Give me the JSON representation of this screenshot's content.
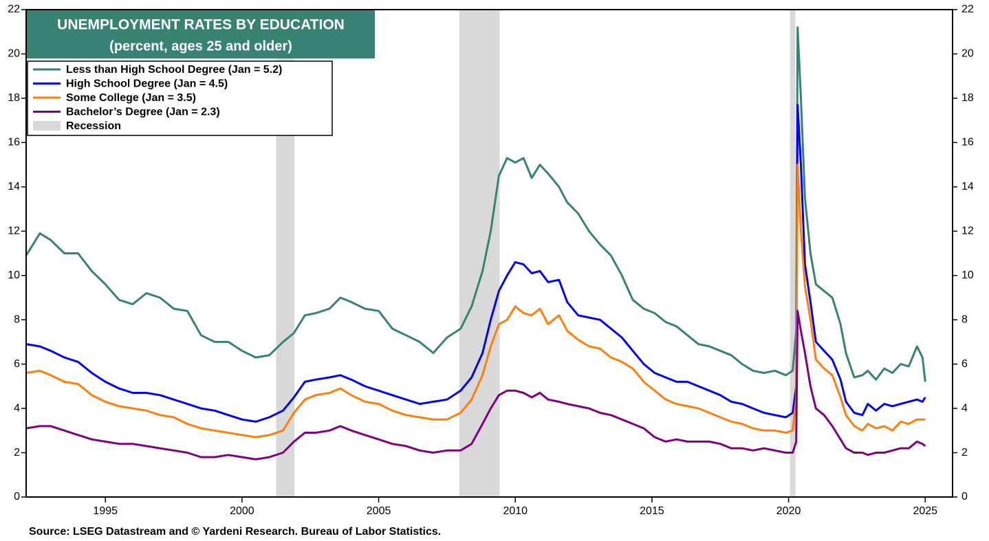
{
  "chart_data": {
    "type": "line",
    "title": "UNEMPLOYMENT RATES BY EDUCATION",
    "subtitle": "(percent, ages 25 and older)",
    "source": "Source: LSEG Datastream and © Yardeni Research. Bureau of Labor Statistics.",
    "xlim": [
      1992.1,
      2026.0
    ],
    "xticks": [
      1995,
      2000,
      2005,
      2010,
      2015,
      2020,
      2025
    ],
    "ylim": [
      0,
      22
    ],
    "yticks": [
      0,
      2,
      4,
      6,
      8,
      10,
      12,
      14,
      16,
      18,
      20,
      22
    ],
    "y2lim": [
      0,
      22
    ],
    "y2ticks": [
      0,
      2,
      4,
      6,
      8,
      10,
      12,
      14,
      16,
      18,
      20,
      22
    ],
    "legend": "upper left",
    "recession_label": "Recession",
    "recession_color": "#d9d9d9",
    "recessions": [
      [
        2001.25,
        2001.92
      ],
      [
        2007.95,
        2009.43
      ],
      [
        2020.05,
        2020.25
      ]
    ],
    "x": [
      1992.1,
      1992.6,
      1993.0,
      1993.5,
      1994.0,
      1994.5,
      1995.0,
      1995.5,
      1996.0,
      1996.5,
      1997.0,
      1997.5,
      1998.0,
      1998.5,
      1999.0,
      1999.5,
      2000.0,
      2000.5,
      2001.0,
      2001.5,
      2001.9,
      2002.3,
      2002.7,
      2003.2,
      2003.6,
      2004.0,
      2004.5,
      2005.0,
      2005.5,
      2006.0,
      2006.5,
      2007.0,
      2007.5,
      2008.0,
      2008.4,
      2008.8,
      2009.1,
      2009.4,
      2009.7,
      2010.0,
      2010.3,
      2010.6,
      2010.9,
      2011.2,
      2011.6,
      2011.9,
      2012.3,
      2012.7,
      2013.1,
      2013.5,
      2013.9,
      2014.3,
      2014.7,
      2015.1,
      2015.5,
      2015.9,
      2016.3,
      2016.7,
      2017.1,
      2017.5,
      2017.9,
      2018.3,
      2018.7,
      2019.1,
      2019.5,
      2019.9,
      2020.15,
      2020.28,
      2020.33,
      2020.45,
      2020.6,
      2020.8,
      2021.0,
      2021.3,
      2021.6,
      2021.9,
      2022.1,
      2022.4,
      2022.7,
      2022.9,
      2023.2,
      2023.5,
      2023.8,
      2024.1,
      2024.4,
      2024.7,
      2024.9,
      2025.0
    ],
    "series": [
      {
        "name": "Less than High School Degree (Jan = 5.2)",
        "color": "#378272",
        "values": [
          10.9,
          11.9,
          11.6,
          11.0,
          11.0,
          10.2,
          9.6,
          8.9,
          8.7,
          9.2,
          9.0,
          8.5,
          8.4,
          7.3,
          7.0,
          7.0,
          6.6,
          6.3,
          6.4,
          7.0,
          7.4,
          8.2,
          8.3,
          8.5,
          9.0,
          8.8,
          8.5,
          8.4,
          7.6,
          7.3,
          7.0,
          6.5,
          7.2,
          7.6,
          8.6,
          10.2,
          12.0,
          14.5,
          15.3,
          15.1,
          15.3,
          14.4,
          15.0,
          14.6,
          14.0,
          13.3,
          12.8,
          12.0,
          11.4,
          10.9,
          10.0,
          8.9,
          8.5,
          8.3,
          7.9,
          7.7,
          7.3,
          6.9,
          6.8,
          6.6,
          6.4,
          6.0,
          5.7,
          5.6,
          5.7,
          5.5,
          5.7,
          7.5,
          21.2,
          18.0,
          13.5,
          11.0,
          9.6,
          9.3,
          9.0,
          7.8,
          6.5,
          5.4,
          5.5,
          5.7,
          5.3,
          5.8,
          5.6,
          6.0,
          5.9,
          6.8,
          6.3,
          5.2
        ]
      },
      {
        "name": "High School Degree (Jan = 4.5)",
        "color": "#0000ff",
        "values": [
          6.9,
          6.8,
          6.6,
          6.3,
          6.1,
          5.6,
          5.2,
          4.9,
          4.7,
          4.7,
          4.6,
          4.4,
          4.2,
          4.0,
          3.9,
          3.7,
          3.5,
          3.4,
          3.6,
          3.9,
          4.5,
          5.2,
          5.3,
          5.4,
          5.5,
          5.3,
          5.0,
          4.8,
          4.6,
          4.4,
          4.2,
          4.3,
          4.4,
          4.8,
          5.4,
          6.5,
          8.0,
          9.3,
          10.0,
          10.6,
          10.5,
          10.1,
          10.2,
          9.7,
          9.8,
          8.8,
          8.2,
          8.1,
          8.0,
          7.6,
          7.2,
          6.6,
          6.0,
          5.6,
          5.4,
          5.2,
          5.2,
          5.0,
          4.8,
          4.6,
          4.3,
          4.2,
          4.0,
          3.8,
          3.7,
          3.6,
          3.8,
          5.0,
          17.7,
          15.0,
          10.5,
          8.8,
          7.0,
          6.6,
          6.2,
          5.3,
          4.3,
          3.8,
          3.7,
          4.2,
          3.9,
          4.2,
          4.1,
          4.2,
          4.3,
          4.4,
          4.3,
          4.5
        ]
      },
      {
        "name": "Some College (Jan = 3.5)",
        "color": "#ff7f0e",
        "values": [
          5.6,
          5.7,
          5.5,
          5.2,
          5.1,
          4.6,
          4.3,
          4.1,
          4.0,
          3.9,
          3.7,
          3.6,
          3.3,
          3.1,
          3.0,
          2.9,
          2.8,
          2.7,
          2.8,
          3.0,
          3.8,
          4.4,
          4.6,
          4.7,
          4.9,
          4.6,
          4.3,
          4.2,
          3.9,
          3.7,
          3.6,
          3.5,
          3.5,
          3.8,
          4.4,
          5.5,
          6.8,
          7.8,
          8.0,
          8.6,
          8.3,
          8.2,
          8.5,
          7.8,
          8.2,
          7.5,
          7.1,
          6.8,
          6.7,
          6.3,
          6.1,
          5.8,
          5.2,
          4.8,
          4.4,
          4.2,
          4.1,
          4.0,
          3.8,
          3.6,
          3.4,
          3.3,
          3.1,
          3.0,
          3.0,
          2.9,
          3.0,
          4.5,
          15.0,
          12.0,
          9.5,
          8.0,
          6.2,
          5.8,
          5.5,
          4.5,
          3.7,
          3.2,
          3.0,
          3.3,
          3.1,
          3.2,
          3.0,
          3.4,
          3.3,
          3.5,
          3.5,
          3.5
        ]
      },
      {
        "name": "Bachelor’s Degree (Jan = 2.3)",
        "color": "#800080",
        "values": [
          3.1,
          3.2,
          3.2,
          3.0,
          2.8,
          2.6,
          2.5,
          2.4,
          2.4,
          2.3,
          2.2,
          2.1,
          2.0,
          1.8,
          1.8,
          1.9,
          1.8,
          1.7,
          1.8,
          2.0,
          2.5,
          2.9,
          2.9,
          3.0,
          3.2,
          3.0,
          2.8,
          2.6,
          2.4,
          2.3,
          2.1,
          2.0,
          2.1,
          2.1,
          2.4,
          3.3,
          4.0,
          4.6,
          4.8,
          4.8,
          4.7,
          4.5,
          4.7,
          4.4,
          4.3,
          4.2,
          4.1,
          4.0,
          3.8,
          3.7,
          3.5,
          3.3,
          3.1,
          2.7,
          2.5,
          2.6,
          2.5,
          2.5,
          2.5,
          2.4,
          2.2,
          2.2,
          2.1,
          2.2,
          2.1,
          2.0,
          2.0,
          2.5,
          8.4,
          7.5,
          6.5,
          5.0,
          4.0,
          3.7,
          3.2,
          2.6,
          2.2,
          2.0,
          2.0,
          1.9,
          2.0,
          2.0,
          2.1,
          2.2,
          2.2,
          2.5,
          2.4,
          2.3
        ]
      }
    ]
  }
}
